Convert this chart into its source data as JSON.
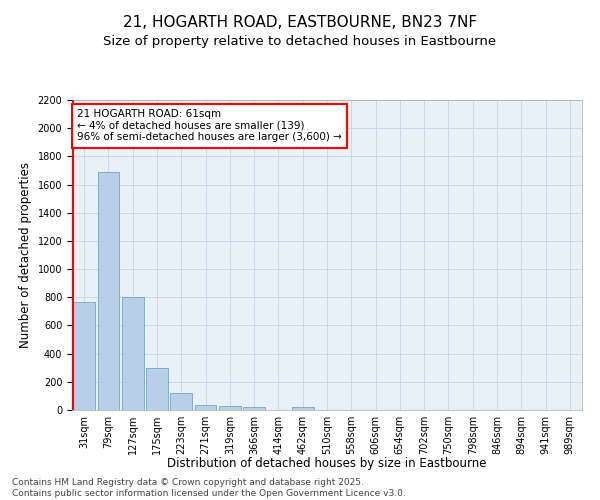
{
  "title": "21, HOGARTH ROAD, EASTBOURNE, BN23 7NF",
  "subtitle": "Size of property relative to detached houses in Eastbourne",
  "xlabel": "Distribution of detached houses by size in Eastbourne",
  "ylabel": "Number of detached properties",
  "categories": [
    "31sqm",
    "79sqm",
    "127sqm",
    "175sqm",
    "223sqm",
    "271sqm",
    "319sqm",
    "366sqm",
    "414sqm",
    "462sqm",
    "510sqm",
    "558sqm",
    "606sqm",
    "654sqm",
    "702sqm",
    "750sqm",
    "798sqm",
    "846sqm",
    "894sqm",
    "941sqm",
    "989sqm"
  ],
  "values": [
    770,
    1690,
    800,
    300,
    120,
    38,
    28,
    20,
    0,
    20,
    0,
    0,
    0,
    0,
    0,
    0,
    0,
    0,
    0,
    0,
    0
  ],
  "bar_color": "#b8cfe8",
  "bar_edge_color": "#6699bb",
  "vline_color": "red",
  "vline_x_index": 0.5,
  "annotation_title": "21 HOGARTH ROAD: 61sqm",
  "annotation_line2": "← 4% of detached houses are smaller (139)",
  "annotation_line3": "96% of semi-detached houses are larger (3,600) →",
  "annotation_box_color": "white",
  "annotation_box_edge_color": "red",
  "ylim": [
    0,
    2200
  ],
  "yticks": [
    0,
    200,
    400,
    600,
    800,
    1000,
    1200,
    1400,
    1600,
    1800,
    2000,
    2200
  ],
  "grid_color": "#c8d8ea",
  "background_color": "#e8f0f8",
  "footer_line1": "Contains HM Land Registry data © Crown copyright and database right 2025.",
  "footer_line2": "Contains public sector information licensed under the Open Government Licence v3.0.",
  "title_fontsize": 11,
  "subtitle_fontsize": 9.5,
  "label_fontsize": 8.5,
  "tick_fontsize": 7,
  "footer_fontsize": 6.5,
  "annotation_fontsize": 7.5
}
